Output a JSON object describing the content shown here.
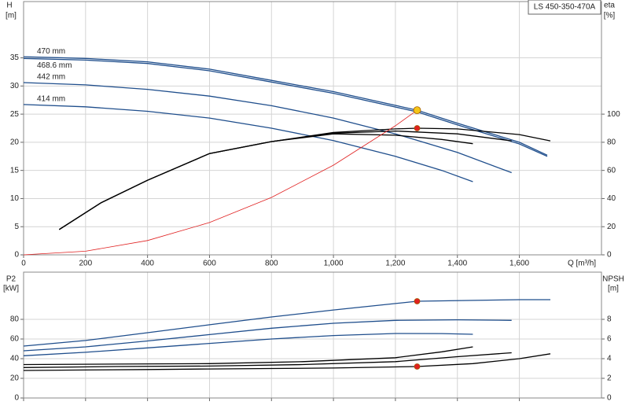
{
  "chart_data": [
    {
      "type": "line",
      "title": "LS 450-350-470A",
      "xlabel": "Q [m³/h]",
      "ylabel": "H",
      "yunit": "[m]",
      "y2label": "eta",
      "y2unit": "[%]",
      "xlim": [
        0,
        1865
      ],
      "ylim": [
        0,
        45
      ],
      "y2lim": [
        0,
        180
      ],
      "xticks": [
        0,
        200,
        400,
        600,
        800,
        {
          "value": 1000,
          "label": "1,000"
        },
        {
          "value": 1200,
          "label": "1,200"
        },
        {
          "value": 1400,
          "label": "1,400"
        },
        {
          "value": 1600,
          "label": "1,600"
        }
      ],
      "yticks": [
        0,
        5,
        10,
        15,
        20,
        25,
        30,
        35
      ],
      "y2ticks": [
        0,
        20,
        40,
        60,
        80,
        100
      ],
      "grid": true,
      "series": [
        {
          "name": "470 mm",
          "color": "#1f4e8c",
          "axis": "y",
          "x": [
            0,
            200,
            400,
            600,
            800,
            1000,
            1270,
            1400,
            1600,
            1690
          ],
          "values": [
            35.2,
            34.9,
            34.3,
            33.0,
            31.0,
            29.0,
            25.7,
            23.4,
            20.0,
            17.7
          ]
        },
        {
          "name": "468.6 mm",
          "color": "#1f4e8c",
          "axis": "y",
          "x": [
            0,
            200,
            400,
            600,
            800,
            1000,
            1270,
            1400,
            1600,
            1690
          ],
          "values": [
            34.9,
            34.6,
            34.0,
            32.7,
            30.7,
            28.7,
            25.4,
            23.1,
            19.7,
            17.5
          ]
        },
        {
          "name": "442 mm",
          "color": "#1f4e8c",
          "axis": "y",
          "x": [
            0,
            200,
            400,
            600,
            800,
            1000,
            1200,
            1400,
            1575
          ],
          "values": [
            30.6,
            30.2,
            29.4,
            28.2,
            26.5,
            24.3,
            21.5,
            18.2,
            14.6
          ]
        },
        {
          "name": "414 mm",
          "color": "#1f4e8c",
          "axis": "y",
          "x": [
            0,
            200,
            400,
            600,
            800,
            1000,
            1200,
            1350,
            1450
          ],
          "values": [
            26.7,
            26.3,
            25.5,
            24.3,
            22.5,
            20.3,
            17.5,
            15.0,
            13.0
          ]
        },
        {
          "color": "#000000",
          "axis": "y2",
          "x": [
            115,
            250,
            400,
            600,
            800,
            1000,
            1200,
            1270,
            1400,
            1600,
            1700
          ],
          "values": [
            18,
            37,
            53,
            72,
            80.5,
            87,
            89.5,
            90,
            89.5,
            85.5,
            81
          ]
        },
        {
          "color": "#000000",
          "axis": "y2",
          "x": [
            115,
            250,
            400,
            600,
            800,
            1000,
            1200,
            1400,
            1575
          ],
          "values": [
            18,
            37,
            53,
            72,
            80.5,
            86.5,
            88,
            86,
            81
          ]
        },
        {
          "color": "#000000",
          "axis": "y2",
          "x": [
            115,
            250,
            400,
            600,
            800,
            1000,
            1200,
            1350,
            1450
          ],
          "values": [
            18,
            37,
            53,
            72,
            80.5,
            86,
            85,
            82,
            79
          ]
        },
        {
          "color": "#e02020",
          "axis": "y",
          "x": [
            0,
            200,
            400,
            600,
            800,
            1000,
            1200,
            1270
          ],
          "values": [
            0,
            0.64,
            2.55,
            5.74,
            10.2,
            15.93,
            22.94,
            25.7
          ]
        },
        {
          "color": "#f5c518",
          "axis": "y",
          "marker": true,
          "x": [
            1270
          ],
          "values": [
            25.7
          ]
        },
        {
          "color": "#e02020",
          "axis": "y2",
          "marker": true,
          "x": [
            1270
          ],
          "values": [
            90
          ]
        }
      ]
    },
    {
      "type": "line",
      "ylabel": "P2",
      "yunit": "[kW]",
      "y2label": "NPSH",
      "y2unit": "[m]",
      "xlim": [
        0,
        1865
      ],
      "ylim": [
        0,
        128
      ],
      "y2lim": [
        0,
        12.8
      ],
      "yticks": [
        0,
        20,
        40,
        60,
        80
      ],
      "y2ticks": [
        0,
        2,
        4,
        6,
        8
      ],
      "grid": true,
      "series": [
        {
          "color": "#1f4e8c",
          "axis": "y",
          "x": [
            0,
            200,
            400,
            600,
            800,
            1000,
            1270,
            1600,
            1700
          ],
          "values": [
            52.8,
            58.5,
            66.4,
            74.5,
            82.4,
            89.5,
            98.4,
            100,
            100
          ]
        },
        {
          "color": "#1f4e8c",
          "axis": "y",
          "x": [
            0,
            200,
            400,
            600,
            800,
            1000,
            1200,
            1400,
            1575
          ],
          "values": [
            48,
            52,
            58,
            64.5,
            71,
            76,
            79,
            79.5,
            79
          ]
        },
        {
          "color": "#1f4e8c",
          "axis": "y",
          "x": [
            0,
            200,
            400,
            600,
            800,
            1000,
            1200,
            1350,
            1450
          ],
          "values": [
            43,
            46.5,
            51,
            55.5,
            60,
            63.5,
            65.6,
            65.5,
            64.8
          ]
        },
        {
          "color": "#000000",
          "axis": "y2",
          "x": [
            0,
            200,
            400,
            600,
            800,
            1000,
            1270,
            1450,
            1600,
            1700
          ],
          "values": [
            2.8,
            2.85,
            2.9,
            2.95,
            3.0,
            3.05,
            3.2,
            3.5,
            4.0,
            4.5
          ]
        },
        {
          "color": "#000000",
          "axis": "y2",
          "x": [
            0,
            300,
            600,
            900,
            1200,
            1400,
            1575
          ],
          "values": [
            3.1,
            3.2,
            3.25,
            3.4,
            3.7,
            4.2,
            4.6
          ]
        },
        {
          "color": "#000000",
          "axis": "y2",
          "x": [
            0,
            300,
            600,
            900,
            1200,
            1350,
            1450
          ],
          "values": [
            3.4,
            3.45,
            3.5,
            3.7,
            4.1,
            4.7,
            5.2
          ]
        },
        {
          "color": "#e02020",
          "axis": "y",
          "marker": true,
          "x": [
            1270
          ],
          "values": [
            98.4
          ]
        },
        {
          "color": "#e02020",
          "axis": "y2",
          "marker": true,
          "x": [
            1270
          ],
          "values": [
            3.2
          ]
        }
      ]
    }
  ]
}
